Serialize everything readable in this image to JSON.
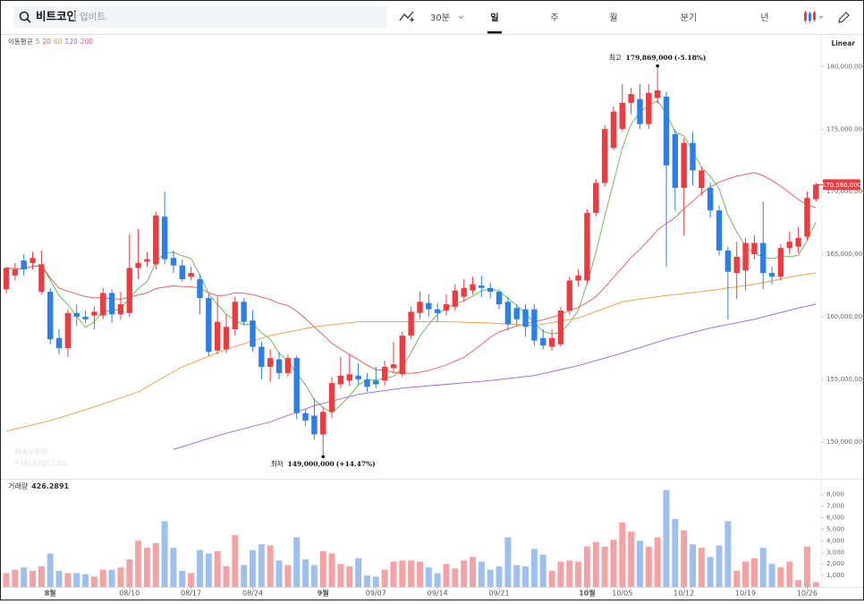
{
  "search": {
    "query": "비트코인",
    "exchange": "업비트"
  },
  "tabs": [
    "30분",
    "일",
    "주",
    "월",
    "분기",
    "년"
  ],
  "active_tab": 1,
  "chart_data": {
    "type": "candlestick",
    "scale_label": "Linear",
    "watermark": [
      "NAVER",
      "FINANCIAL"
    ],
    "grid": false,
    "colors": {
      "up": "#ef3b3f",
      "down": "#2b7fe6",
      "volume_up": "#f5a2a4",
      "volume_down": "#9fc0ee"
    },
    "categories": [
      null,
      null,
      null,
      null,
      null,
      "8월",
      null,
      null,
      null,
      null,
      null,
      null,
      null,
      null,
      "08/10",
      null,
      null,
      null,
      null,
      null,
      null,
      "08/17",
      null,
      null,
      null,
      null,
      null,
      null,
      "08/24",
      null,
      null,
      null,
      null,
      null,
      null,
      null,
      "9월",
      null,
      null,
      null,
      null,
      null,
      "09/07",
      null,
      null,
      null,
      null,
      null,
      null,
      "09/14",
      null,
      null,
      null,
      null,
      null,
      null,
      "09/21",
      null,
      null,
      null,
      null,
      null,
      null,
      null,
      null,
      null,
      "10월",
      null,
      null,
      null,
      "10/05",
      null,
      null,
      null,
      null,
      null,
      null,
      "10/12",
      null,
      null,
      null,
      null,
      null,
      null,
      "10/19",
      null,
      null,
      null,
      null,
      null,
      null,
      "10/26",
      null
    ],
    "open": [
      162200000,
      163300000,
      164500000,
      164300000,
      162000000,
      162000000,
      158300000,
      157500000,
      160300000,
      160000000,
      160100000,
      160100000,
      161900000,
      160200000,
      160300000,
      163900000,
      164400000,
      164200000,
      168000000,
      164700000,
      164100000,
      163200000,
      163000000,
      161500000,
      157300000,
      157400000,
      159000000,
      161200000,
      159700000,
      157600000,
      156000000,
      156600000,
      155500000,
      156700000,
      152300000,
      152100000,
      150600000,
      152400000,
      154600000,
      154900000,
      155300000,
      155000000,
      154900000,
      154900000,
      155900000,
      155400000,
      158500000,
      160300000,
      161100000,
      160600000,
      160500000,
      160800000,
      161600000,
      162100000,
      162500000,
      162300000,
      162000000,
      161200000,
      160700000,
      160600000,
      160600000,
      158300000,
      157600000,
      157800000,
      160500000,
      162900000,
      162900000,
      168300000,
      170700000,
      173500000,
      175000000,
      177100000,
      177400000,
      175400000,
      177500000,
      177600000,
      174600000,
      170300000,
      173900000,
      170300000,
      170300000,
      168500000,
      165300000,
      163500000,
      163700000,
      165000000,
      165900000,
      163500000,
      163200000,
      165500000,
      165600000,
      166400000,
      169400000
    ],
    "high": [
      164000000,
      164300000,
      165000000,
      165200000,
      165300000,
      162300000,
      159000000,
      160600000,
      161000000,
      160500000,
      160800000,
      162300000,
      162200000,
      162000000,
      166600000,
      167000000,
      165200000,
      168400000,
      170000000,
      165300000,
      164600000,
      164000000,
      163400000,
      161800000,
      161600000,
      160200000,
      161600000,
      161500000,
      160500000,
      158000000,
      157400000,
      157200000,
      157000000,
      156900000,
      152600000,
      153500000,
      152800000,
      155200000,
      156800000,
      157000000,
      156300000,
      155500000,
      156000000,
      156500000,
      158000000,
      158800000,
      160800000,
      162000000,
      161800000,
      161100000,
      161800000,
      162600000,
      163000000,
      163200000,
      163300000,
      162700000,
      162200000,
      161600000,
      161000000,
      161000000,
      161000000,
      159000000,
      159000000,
      160800000,
      163200000,
      163800000,
      168600000,
      171000000,
      175300000,
      176800000,
      178600000,
      178300000,
      178600000,
      178600000,
      179869000,
      178000000,
      175000000,
      174300000,
      174800000,
      172000000,
      170700000,
      168900000,
      165600000,
      166000000,
      166300000,
      166500000,
      169200000,
      164000000,
      165800000,
      166800000,
      167200000,
      170000000,
      170700000
    ],
    "low": [
      161900000,
      162900000,
      163300000,
      163800000,
      161800000,
      157800000,
      157000000,
      156800000,
      159300000,
      159500000,
      159000000,
      159800000,
      159500000,
      159800000,
      160000000,
      163000000,
      164000000,
      163800000,
      164200000,
      163500000,
      162800000,
      162900000,
      160200000,
      156900000,
      157000000,
      157100000,
      158500000,
      159300000,
      157200000,
      155000000,
      154800000,
      155000000,
      155200000,
      151800000,
      151300000,
      150200000,
      149000000,
      151900000,
      154300000,
      154500000,
      154600000,
      154000000,
      154300000,
      154500000,
      155500000,
      155200000,
      158200000,
      159800000,
      160000000,
      159600000,
      160100000,
      160500000,
      161200000,
      161800000,
      161600000,
      161500000,
      160600000,
      158900000,
      159300000,
      158400000,
      157700000,
      157400000,
      157300000,
      157600000,
      160200000,
      162400000,
      162600000,
      168000000,
      170400000,
      173300000,
      174800000,
      176200000,
      175000000,
      175000000,
      177000000,
      164000000,
      168500000,
      166500000,
      170500000,
      169700000,
      167900000,
      164900000,
      159800000,
      161400000,
      162100000,
      164600000,
      162200000,
      162600000,
      162900000,
      165000000,
      165100000,
      166100000,
      169200000
    ],
    "close": [
      163900000,
      163800000,
      163800000,
      164700000,
      164200000,
      158200000,
      157500000,
      160300000,
      160000000,
      159800000,
      160400000,
      161900000,
      160200000,
      161000000,
      163900000,
      164300000,
      164600000,
      168100000,
      164600000,
      164100000,
      163000000,
      163500000,
      161500000,
      157200000,
      159600000,
      159200000,
      161200000,
      159600000,
      157600000,
      156000000,
      156700000,
      155500000,
      156700000,
      152300000,
      151700000,
      150600000,
      152400000,
      154700000,
      155300000,
      155400000,
      155000000,
      154400000,
      154600000,
      156000000,
      156200000,
      158500000,
      160400000,
      161200000,
      160600000,
      160300000,
      161000000,
      162100000,
      162300000,
      162600000,
      162300000,
      162000000,
      161000000,
      159400000,
      159800000,
      159200000,
      158100000,
      157700000,
      158300000,
      160500000,
      162900000,
      163300000,
      168300000,
      170700000,
      175000000,
      176400000,
      177100000,
      177800000,
      175400000,
      177900000,
      178100000,
      172100000,
      170300000,
      173900000,
      171700000,
      171700000,
      168500000,
      165300000,
      163600000,
      164800000,
      165900000,
      165900000,
      163500000,
      163200000,
      165500000,
      166000000,
      166300000,
      169500000,
      170560000
    ],
    "ylim": [
      147200000,
      182600000
    ],
    "yticks": [
      {
        "value": 150000000,
        "label": "150,000,000"
      },
      {
        "value": 155000000,
        "label": "155,000,000"
      },
      {
        "value": 160000000,
        "label": "160,000,000"
      },
      {
        "value": 165000000,
        "label": "165,000,000"
      },
      {
        "value": 170000000,
        "label": "170,000,000"
      },
      {
        "value": 175000000,
        "label": "175,000,000"
      },
      {
        "value": 180000000,
        "label": "180,000,000"
      }
    ],
    "current_price": {
      "value": 170560000,
      "label": "170,560,000"
    },
    "high_marker": {
      "label": "최고",
      "index": 74,
      "value": 179869000,
      "value_label": "179,869,000",
      "change": "(-5.18%)"
    },
    "low_marker": {
      "label": "최저",
      "index": 36,
      "value": 149000000,
      "value_label": "149,000,000",
      "change": "(+14.47%)"
    },
    "moving_averages": {
      "title": "이동평균",
      "lines": [
        {
          "name": "5",
          "color": "#5fb54a"
        },
        {
          "name": "20",
          "color": "#e9534f"
        },
        {
          "name": "60",
          "color": "#f0973a",
          "x": [
            0,
            5,
            10,
            15,
            20,
            25,
            30,
            35,
            40,
            45,
            50,
            55,
            60,
            65,
            70,
            75,
            80,
            85,
            90,
            92
          ],
          "values": [
            150860000,
            151700000,
            152800000,
            154000000,
            156000000,
            157400000,
            158500000,
            159200000,
            159600000,
            159600000,
            159600000,
            159500000,
            159300000,
            159900000,
            161200000,
            161700000,
            162100000,
            162600000,
            163300000,
            163500000
          ]
        },
        {
          "name": "120",
          "color": "#9b5fdc",
          "x": [
            19,
            25,
            30,
            35,
            40,
            45,
            50,
            55,
            60,
            65,
            70,
            75,
            80,
            85,
            90,
            92
          ],
          "values": [
            149400000,
            150700000,
            151600000,
            152900000,
            153800000,
            154300000,
            154600000,
            154900000,
            155300000,
            156100000,
            157100000,
            158200000,
            159100000,
            159800000,
            160700000,
            161000000
          ]
        },
        {
          "name": "200",
          "color": "#df55b5",
          "drawn": false
        }
      ]
    },
    "volume": {
      "title": "거래량",
      "values": [
        1200,
        1500,
        1700,
        1400,
        1800,
        2900,
        1400,
        1200,
        1200,
        1100,
        900,
        1500,
        1500,
        1700,
        2400,
        4000,
        3400,
        3800,
        5700,
        3400,
        1400,
        1200,
        3200,
        2900,
        3100,
        1800,
        4500,
        1900,
        3200,
        3700,
        3600,
        2300,
        1900,
        4300,
        2400,
        1900,
        3100,
        2900,
        2000,
        1800,
        2500,
        1000,
        900,
        1500,
        2200,
        2300,
        2300,
        2200,
        1700,
        1200,
        2000,
        1600,
        2300,
        2600,
        2200,
        1500,
        1800,
        4300,
        1900,
        1800,
        3300,
        2800,
        1400,
        2200,
        2300,
        2200,
        3500,
        3900,
        3500,
        4100,
        5600,
        4800,
        4000,
        3500,
        4300,
        8400,
        5900,
        4900,
        3700,
        3400,
        2600,
        3600,
        5700,
        1400,
        2200,
        2500,
        3400,
        2000,
        1700,
        2200,
        600,
        3500,
        426.2891
      ],
      "ylim": [
        0,
        8600
      ],
      "yticks": [
        {
          "value": 1000,
          "label": "1,000"
        },
        {
          "value": 2000,
          "label": "2,000"
        },
        {
          "value": 3000,
          "label": "3,000"
        },
        {
          "value": 4000,
          "label": "4,000"
        },
        {
          "value": 5000,
          "label": "5,000"
        },
        {
          "value": 6000,
          "label": "6,000"
        },
        {
          "value": 7000,
          "label": "7,000"
        },
        {
          "value": 8000,
          "label": "8,000"
        }
      ]
    }
  }
}
